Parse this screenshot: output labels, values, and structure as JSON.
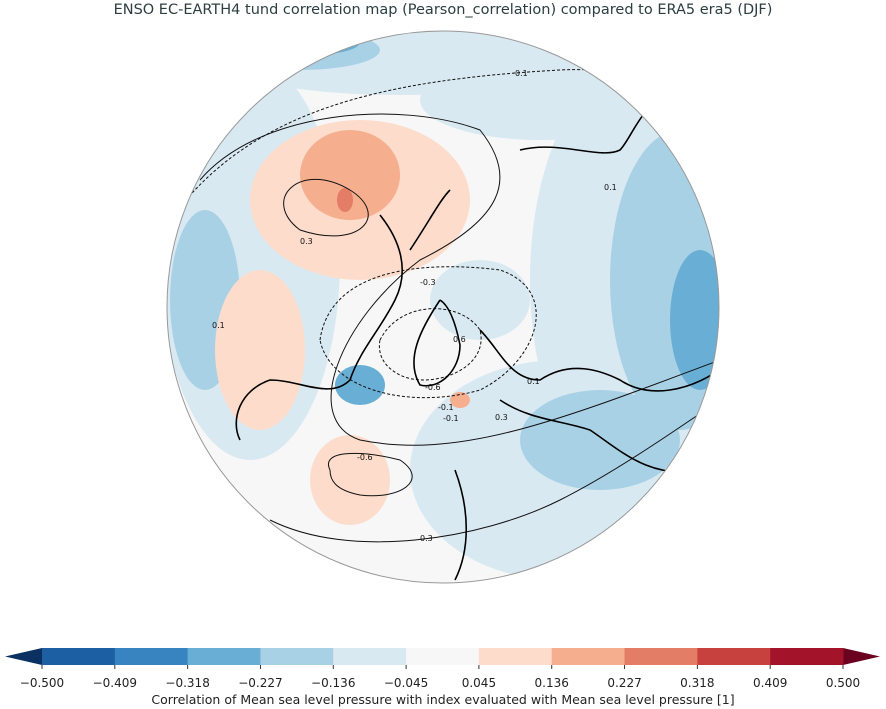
{
  "title": "ENSO EC-EARTH4 tund correlation map (Pearson_correlation) compared to ERA5 era5 (DJF)",
  "map": {
    "projection": "north-polar-stereographic",
    "contour_labels": [
      "0.1",
      "0.1",
      "0.3",
      "-0.3",
      "0.6",
      "-0.6",
      "-0.1",
      "-0.1",
      "0.1",
      "0.3",
      "-0.6",
      "0.3",
      "0.1"
    ]
  },
  "colorbar": {
    "label": "Correlation of Mean sea level pressure with index evaluated with Mean sea level pressure [1]",
    "ticks": [
      "−0.500",
      "−0.409",
      "−0.318",
      "−0.227",
      "−0.136",
      "−0.045",
      "0.045",
      "0.136",
      "0.227",
      "0.318",
      "0.409",
      "0.500"
    ],
    "colors": [
      "#1d5fa3",
      "#3784c0",
      "#69aed4",
      "#a9d1e6",
      "#d9e9f2",
      "#f7f7f7",
      "#fddccb",
      "#f5ae8e",
      "#e37d65",
      "#c7413f",
      "#a3142b"
    ],
    "under_color": "#0b3163",
    "over_color": "#6a0220"
  }
}
